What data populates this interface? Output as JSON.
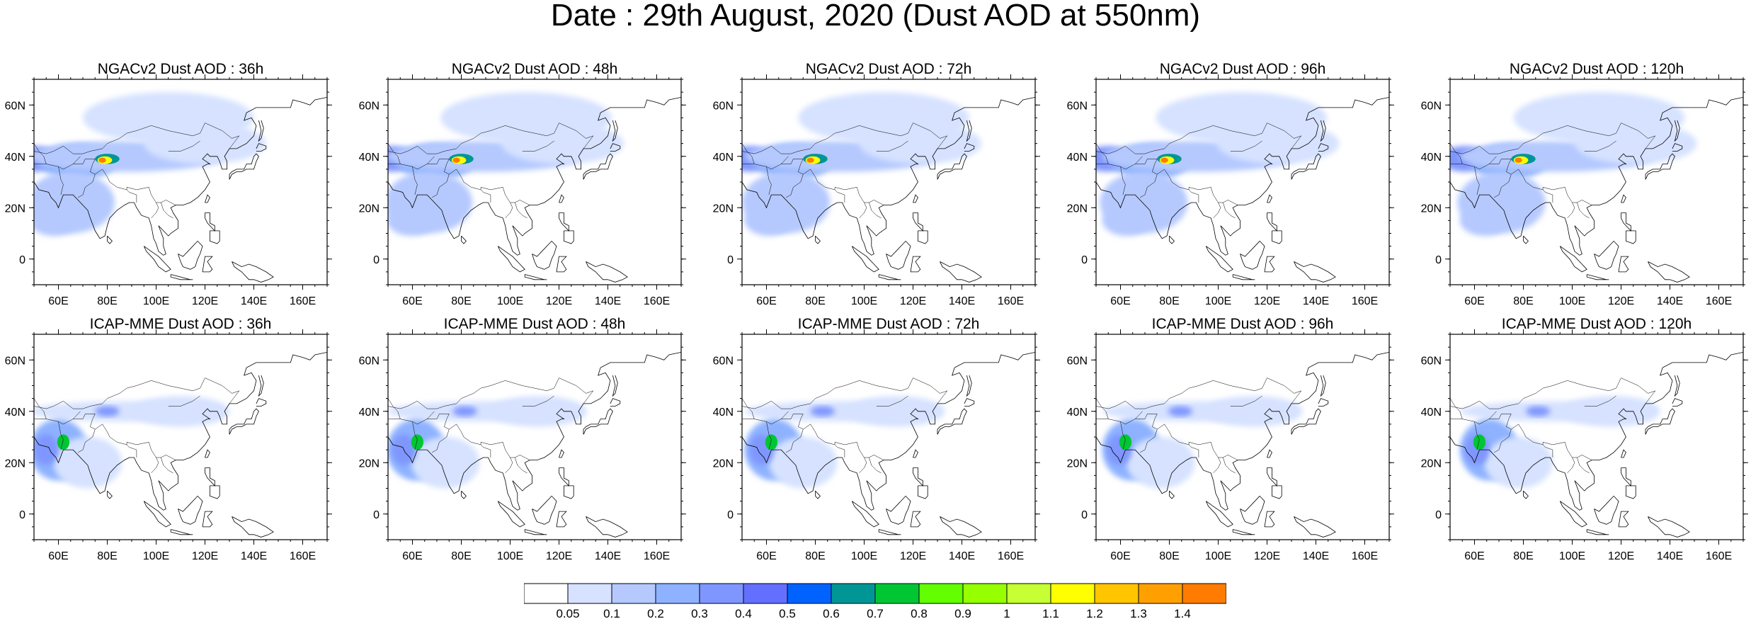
{
  "title": "Date : 29th August, 2020 (Dust AOD at 550nm)",
  "map": {
    "lon_ticks": [
      "60E",
      "80E",
      "100E",
      "120E",
      "140E",
      "160E"
    ],
    "lon_values": [
      60,
      80,
      100,
      120,
      140,
      160
    ],
    "lat_ticks": [
      "60N",
      "40N",
      "20N",
      "0"
    ],
    "lat_values": [
      60,
      40,
      20,
      0
    ],
    "lon_range": [
      50,
      170
    ],
    "lat_range": [
      -10,
      70
    ],
    "land_color": "#ffffff",
    "coast_color": "#000000"
  },
  "rows": [
    {
      "model": "NGACv2",
      "panels": [
        {
          "title": "NGACv2 Dust AOD : 36h",
          "lead": "36h"
        },
        {
          "title": "NGACv2 Dust AOD : 48h",
          "lead": "48h"
        },
        {
          "title": "NGACv2 Dust AOD : 72h",
          "lead": "72h"
        },
        {
          "title": "NGACv2 Dust AOD : 96h",
          "lead": "96h"
        },
        {
          "title": "NGACv2 Dust AOD : 120h",
          "lead": "120h"
        }
      ]
    },
    {
      "model": "ICAP-MME",
      "panels": [
        {
          "title": "ICAP-MME Dust AOD : 36h",
          "lead": "36h"
        },
        {
          "title": "ICAP-MME Dust AOD : 48h",
          "lead": "48h"
        },
        {
          "title": "ICAP-MME Dust AOD : 72h",
          "lead": "72h"
        },
        {
          "title": "ICAP-MME Dust AOD : 96h",
          "lead": "96h"
        },
        {
          "title": "ICAP-MME Dust AOD : 120h",
          "lead": "120h"
        }
      ]
    }
  ],
  "colorbar": {
    "labels": [
      "0.05",
      "0.1",
      "0.2",
      "0.3",
      "0.4",
      "0.5",
      "0.6",
      "0.7",
      "0.8",
      "0.9",
      "1",
      "1.1",
      "1.2",
      "1.3",
      "1.4"
    ],
    "colors": [
      "#ffffff",
      "#d6e2ff",
      "#b5c9ff",
      "#8eb2ff",
      "#7f96ff",
      "#6370ff",
      "#0063ff",
      "#009696",
      "#00c633",
      "#63ff00",
      "#96ff00",
      "#c6ff33",
      "#ffff00",
      "#ffc600",
      "#ffa000",
      "#ff7c00",
      "#ff1900"
    ]
  },
  "aod_fields": {
    "NGACv2": [
      {
        "lon": 50,
        "lat": 39,
        "rx": 10,
        "ry": 5,
        "level": 4
      },
      {
        "lon": 68,
        "lat": 38,
        "rx": 16,
        "ry": 7,
        "level": 3
      },
      {
        "lon": 88,
        "lat": 40,
        "rx": 40,
        "ry": 6,
        "level": 2
      },
      {
        "lon": 105,
        "lat": 55,
        "rx": 35,
        "ry": 10,
        "level": 1
      },
      {
        "lon": 120,
        "lat": 45,
        "rx": 25,
        "ry": 8,
        "level": 1
      },
      {
        "lon": 65,
        "lat": 22,
        "rx": 18,
        "ry": 12,
        "level": 2
      },
      {
        "lon": 58,
        "lat": 15,
        "rx": 10,
        "ry": 6,
        "level": 2
      },
      {
        "lon": 80,
        "lat": 39,
        "rx": 5,
        "ry": 2,
        "level": 7
      },
      {
        "lon": 79,
        "lat": 38.5,
        "rx": 3,
        "ry": 1.5,
        "level": 12
      },
      {
        "lon": 78,
        "lat": 38.5,
        "rx": 1.5,
        "ry": 1,
        "level": 15
      }
    ],
    "ICAP-MME": [
      {
        "lon": 88,
        "lat": 40,
        "rx": 40,
        "ry": 4,
        "level": 1
      },
      {
        "lon": 110,
        "lat": 40,
        "rx": 20,
        "ry": 6,
        "level": 1
      },
      {
        "lon": 60,
        "lat": 25,
        "rx": 12,
        "ry": 12,
        "level": 3
      },
      {
        "lon": 72,
        "lat": 20,
        "rx": 14,
        "ry": 10,
        "level": 1
      },
      {
        "lon": 80,
        "lat": 40,
        "rx": 5,
        "ry": 2,
        "level": 4
      },
      {
        "lon": 55,
        "lat": 25,
        "rx": 5,
        "ry": 6,
        "level": 4
      },
      {
        "lon": 62,
        "lat": 28,
        "rx": 2.5,
        "ry": 3,
        "level": 8
      }
    ]
  }
}
